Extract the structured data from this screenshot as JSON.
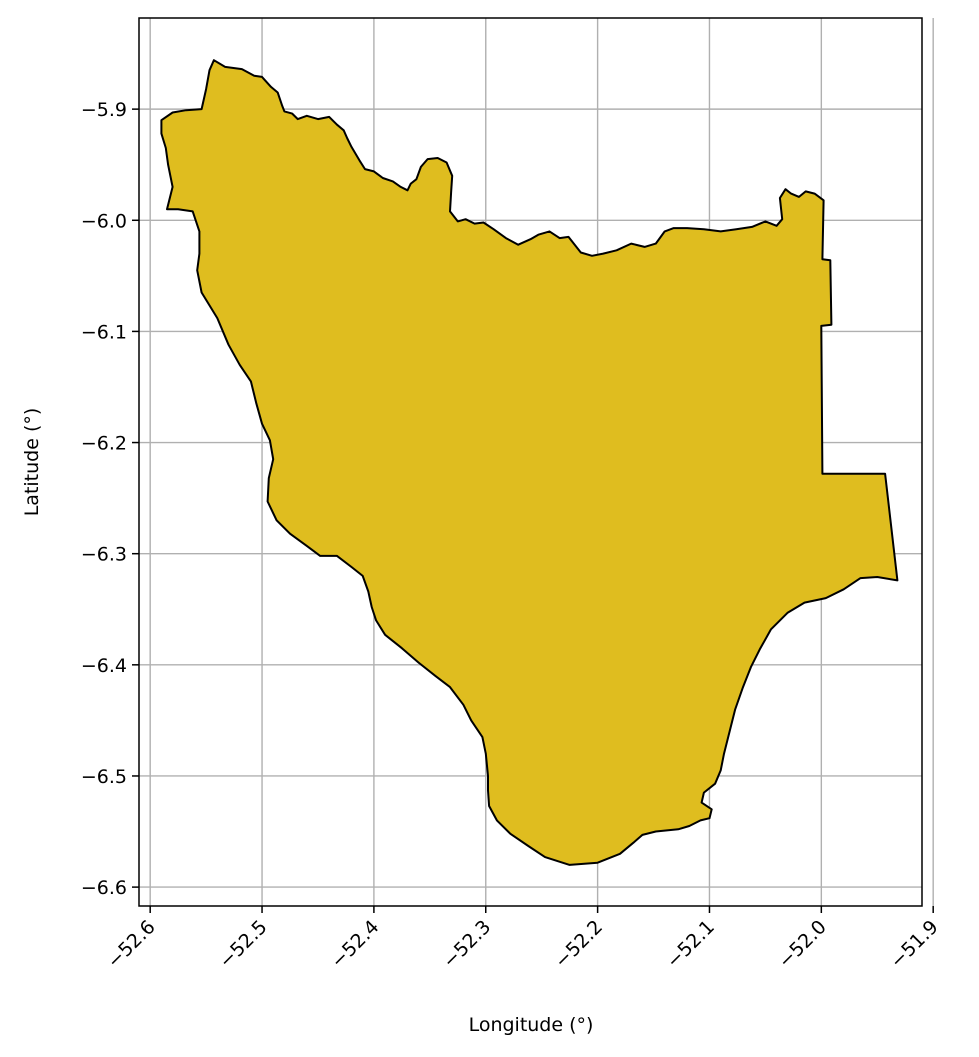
{
  "chart_data": {
    "type": "choropleth",
    "title": "",
    "xlabel": "Longitude (°)",
    "ylabel": "Latitude (°)",
    "xlim": [
      -52.61,
      -51.91
    ],
    "ylim": [
      -6.617,
      -5.818
    ],
    "grid": true,
    "x_ticks": [
      -52.6,
      -52.5,
      -52.4,
      -52.3,
      -52.2,
      -52.1,
      -52.0,
      -51.9
    ],
    "x_tick_labels": [
      "−52.6",
      "−52.5",
      "−52.4",
      "−52.3",
      "−52.2",
      "−52.1",
      "−52.0",
      "−51.9"
    ],
    "y_ticks": [
      -5.9,
      -6.0,
      -6.1,
      -6.2,
      -6.3,
      -6.4,
      -6.5,
      -6.6
    ],
    "y_tick_labels": [
      "−5.9",
      "−6.0",
      "−6.1",
      "−6.2",
      "−6.3",
      "−6.4",
      "−6.5",
      "−6.6"
    ],
    "region": {
      "fill": "#dfbd1f",
      "edge": "#000000",
      "boundary": [
        [
          -52.543,
          -5.856
        ],
        [
          -52.533,
          -5.862
        ],
        [
          -52.518,
          -5.864
        ],
        [
          -52.507,
          -5.87
        ],
        [
          -52.5,
          -5.871
        ],
        [
          -52.492,
          -5.88
        ],
        [
          -52.486,
          -5.885
        ],
        [
          -52.482,
          -5.897
        ],
        [
          -52.48,
          -5.902
        ],
        [
          -52.473,
          -5.904
        ],
        [
          -52.468,
          -5.909
        ],
        [
          -52.46,
          -5.906
        ],
        [
          -52.45,
          -5.909
        ],
        [
          -52.44,
          -5.907
        ],
        [
          -52.433,
          -5.914
        ],
        [
          -52.427,
          -5.919
        ],
        [
          -52.424,
          -5.926
        ],
        [
          -52.42,
          -5.934
        ],
        [
          -52.413,
          -5.946
        ],
        [
          -52.408,
          -5.954
        ],
        [
          -52.4,
          -5.956
        ],
        [
          -52.392,
          -5.962
        ],
        [
          -52.383,
          -5.965
        ],
        [
          -52.376,
          -5.97
        ],
        [
          -52.37,
          -5.973
        ],
        [
          -52.367,
          -5.967
        ],
        [
          -52.362,
          -5.963
        ],
        [
          -52.358,
          -5.952
        ],
        [
          -52.352,
          -5.945
        ],
        [
          -52.343,
          -5.944
        ],
        [
          -52.335,
          -5.948
        ],
        [
          -52.33,
          -5.96
        ],
        [
          -52.331,
          -5.975
        ],
        [
          -52.332,
          -5.992
        ],
        [
          -52.325,
          -6.001
        ],
        [
          -52.318,
          -5.999
        ],
        [
          -52.31,
          -6.003
        ],
        [
          -52.302,
          -6.002
        ],
        [
          -52.293,
          -6.008
        ],
        [
          -52.282,
          -6.016
        ],
        [
          -52.271,
          -6.022
        ],
        [
          -52.26,
          -6.017
        ],
        [
          -52.253,
          -6.013
        ],
        [
          -52.243,
          -6.01
        ],
        [
          -52.234,
          -6.016
        ],
        [
          -52.226,
          -6.015
        ],
        [
          -52.215,
          -6.029
        ],
        [
          -52.205,
          -6.032
        ],
        [
          -52.195,
          -6.03
        ],
        [
          -52.183,
          -6.027
        ],
        [
          -52.17,
          -6.021
        ],
        [
          -52.158,
          -6.024
        ],
        [
          -52.148,
          -6.021
        ],
        [
          -52.14,
          -6.01
        ],
        [
          -52.132,
          -6.007
        ],
        [
          -52.12,
          -6.007
        ],
        [
          -52.105,
          -6.008
        ],
        [
          -52.09,
          -6.01
        ],
        [
          -52.076,
          -6.008
        ],
        [
          -52.062,
          -6.006
        ],
        [
          -52.05,
          -6.001
        ],
        [
          -52.04,
          -6.005
        ],
        [
          -52.035,
          -5.999
        ],
        [
          -52.037,
          -5.98
        ],
        [
          -52.032,
          -5.972
        ],
        [
          -52.027,
          -5.976
        ],
        [
          -52.02,
          -5.979
        ],
        [
          -52.014,
          -5.974
        ],
        [
          -52.006,
          -5.976
        ],
        [
          -51.998,
          -5.982
        ],
        [
          -51.999,
          -6.035
        ],
        [
          -51.992,
          -6.036
        ],
        [
          -51.991,
          -6.094
        ],
        [
          -52.0,
          -6.095
        ],
        [
          -51.999,
          -6.228
        ],
        [
          -51.943,
          -6.228
        ],
        [
          -51.932,
          -6.324
        ],
        [
          -51.95,
          -6.321
        ],
        [
          -51.965,
          -6.322
        ],
        [
          -51.98,
          -6.332
        ],
        [
          -51.996,
          -6.34
        ],
        [
          -52.015,
          -6.344
        ],
        [
          -52.03,
          -6.353
        ],
        [
          -52.045,
          -6.368
        ],
        [
          -52.055,
          -6.386
        ],
        [
          -52.063,
          -6.402
        ],
        [
          -52.07,
          -6.42
        ],
        [
          -52.077,
          -6.44
        ],
        [
          -52.082,
          -6.46
        ],
        [
          -52.087,
          -6.48
        ],
        [
          -52.09,
          -6.495
        ],
        [
          -52.095,
          -6.507
        ],
        [
          -52.105,
          -6.515
        ],
        [
          -52.107,
          -6.524
        ],
        [
          -52.098,
          -6.53
        ],
        [
          -52.1,
          -6.538
        ],
        [
          -52.108,
          -6.54
        ],
        [
          -52.118,
          -6.545
        ],
        [
          -52.128,
          -6.548
        ],
        [
          -52.148,
          -6.55
        ],
        [
          -52.16,
          -6.553
        ],
        [
          -52.168,
          -6.56
        ],
        [
          -52.18,
          -6.57
        ],
        [
          -52.2,
          -6.578
        ],
        [
          -52.225,
          -6.58
        ],
        [
          -52.247,
          -6.573
        ],
        [
          -52.262,
          -6.563
        ],
        [
          -52.278,
          -6.552
        ],
        [
          -52.29,
          -6.54
        ],
        [
          -52.297,
          -6.527
        ],
        [
          -52.298,
          -6.513
        ],
        [
          -52.298,
          -6.5
        ],
        [
          -52.3,
          -6.48
        ],
        [
          -52.303,
          -6.465
        ],
        [
          -52.313,
          -6.45
        ],
        [
          -52.32,
          -6.436
        ],
        [
          -52.332,
          -6.42
        ],
        [
          -52.345,
          -6.41
        ],
        [
          -52.36,
          -6.398
        ],
        [
          -52.375,
          -6.385
        ],
        [
          -52.39,
          -6.373
        ],
        [
          -52.398,
          -6.36
        ],
        [
          -52.402,
          -6.348
        ],
        [
          -52.405,
          -6.334
        ],
        [
          -52.41,
          -6.32
        ],
        [
          -52.42,
          -6.312
        ],
        [
          -52.433,
          -6.302
        ],
        [
          -52.448,
          -6.302
        ],
        [
          -52.46,
          -6.293
        ],
        [
          -52.475,
          -6.282
        ],
        [
          -52.487,
          -6.27
        ],
        [
          -52.495,
          -6.253
        ],
        [
          -52.494,
          -6.232
        ],
        [
          -52.49,
          -6.215
        ],
        [
          -52.493,
          -6.198
        ],
        [
          -52.5,
          -6.183
        ],
        [
          -52.505,
          -6.165
        ],
        [
          -52.51,
          -6.145
        ],
        [
          -52.52,
          -6.13
        ],
        [
          -52.53,
          -6.112
        ],
        [
          -52.54,
          -6.088
        ],
        [
          -52.554,
          -6.065
        ],
        [
          -52.558,
          -6.045
        ],
        [
          -52.556,
          -6.03
        ],
        [
          -52.556,
          -6.01
        ],
        [
          -52.562,
          -5.992
        ],
        [
          -52.575,
          -5.99
        ],
        [
          -52.585,
          -5.99
        ],
        [
          -52.58,
          -5.97
        ],
        [
          -52.584,
          -5.95
        ],
        [
          -52.586,
          -5.935
        ],
        [
          -52.59,
          -5.922
        ],
        [
          -52.59,
          -5.91
        ],
        [
          -52.58,
          -5.903
        ],
        [
          -52.568,
          -5.901
        ],
        [
          -52.554,
          -5.9
        ],
        [
          -52.55,
          -5.882
        ],
        [
          -52.547,
          -5.865
        ]
      ]
    }
  }
}
